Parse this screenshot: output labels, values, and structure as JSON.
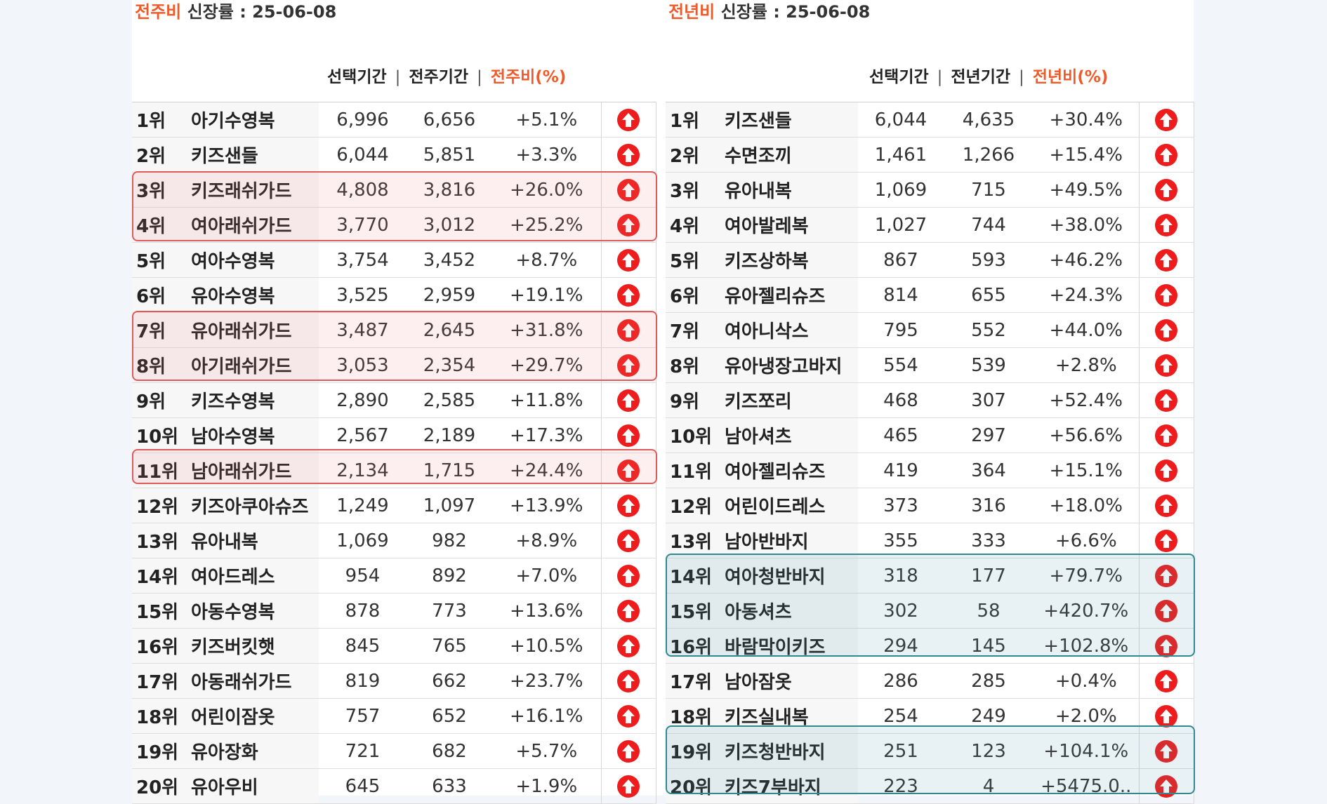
{
  "left": {
    "title_accent": "전주비",
    "title_rest": " 신장률 : 25-06-08",
    "col_selected": "선택기간",
    "col_compare": "전주기간",
    "col_ratio": "전주비(%)",
    "rows": [
      {
        "rank": "1위",
        "name": "아기수영복",
        "sel": "6,996",
        "cmp": "6,656",
        "pct": "+5.1%"
      },
      {
        "rank": "2위",
        "name": "키즈샌들",
        "sel": "6,044",
        "cmp": "5,851",
        "pct": "+3.3%"
      },
      {
        "rank": "3위",
        "name": "키즈래쉬가드",
        "sel": "4,808",
        "cmp": "3,816",
        "pct": "+26.0%"
      },
      {
        "rank": "4위",
        "name": "여아래쉬가드",
        "sel": "3,770",
        "cmp": "3,012",
        "pct": "+25.2%"
      },
      {
        "rank": "5위",
        "name": "여아수영복",
        "sel": "3,754",
        "cmp": "3,452",
        "pct": "+8.7%"
      },
      {
        "rank": "6위",
        "name": "유아수영복",
        "sel": "3,525",
        "cmp": "2,959",
        "pct": "+19.1%"
      },
      {
        "rank": "7위",
        "name": "유아래쉬가드",
        "sel": "3,487",
        "cmp": "2,645",
        "pct": "+31.8%"
      },
      {
        "rank": "8위",
        "name": "아기래쉬가드",
        "sel": "3,053",
        "cmp": "2,354",
        "pct": "+29.7%"
      },
      {
        "rank": "9위",
        "name": "키즈수영복",
        "sel": "2,890",
        "cmp": "2,585",
        "pct": "+11.8%"
      },
      {
        "rank": "10위",
        "name": "남아수영복",
        "sel": "2,567",
        "cmp": "2,189",
        "pct": "+17.3%"
      },
      {
        "rank": "11위",
        "name": "남아래쉬가드",
        "sel": "2,134",
        "cmp": "1,715",
        "pct": "+24.4%"
      },
      {
        "rank": "12위",
        "name": "키즈아쿠아슈즈",
        "sel": "1,249",
        "cmp": "1,097",
        "pct": "+13.9%"
      },
      {
        "rank": "13위",
        "name": "유아내복",
        "sel": "1,069",
        "cmp": "982",
        "pct": "+8.9%"
      },
      {
        "rank": "14위",
        "name": "여아드레스",
        "sel": "954",
        "cmp": "892",
        "pct": "+7.0%"
      },
      {
        "rank": "15위",
        "name": "아동수영복",
        "sel": "878",
        "cmp": "773",
        "pct": "+13.6%"
      },
      {
        "rank": "16위",
        "name": "키즈버킷햇",
        "sel": "845",
        "cmp": "765",
        "pct": "+10.5%"
      },
      {
        "rank": "17위",
        "name": "아동래쉬가드",
        "sel": "819",
        "cmp": "662",
        "pct": "+23.7%"
      },
      {
        "rank": "18위",
        "name": "어린이잠옷",
        "sel": "757",
        "cmp": "652",
        "pct": "+16.1%"
      },
      {
        "rank": "19위",
        "name": "유아장화",
        "sel": "721",
        "cmp": "682",
        "pct": "+5.7%"
      },
      {
        "rank": "20위",
        "name": "유아우비",
        "sel": "645",
        "cmp": "633",
        "pct": "+1.9%"
      }
    ]
  },
  "right": {
    "title_accent": "전년비",
    "title_rest": " 신장률 : 25-06-08",
    "col_selected": "선택기간",
    "col_compare": "전년기간",
    "col_ratio": "전년비(%)",
    "rows": [
      {
        "rank": "1위",
        "name": "키즈샌들",
        "sel": "6,044",
        "cmp": "4,635",
        "pct": "+30.4%"
      },
      {
        "rank": "2위",
        "name": "수면조끼",
        "sel": "1,461",
        "cmp": "1,266",
        "pct": "+15.4%"
      },
      {
        "rank": "3위",
        "name": "유아내복",
        "sel": "1,069",
        "cmp": "715",
        "pct": "+49.5%"
      },
      {
        "rank": "4위",
        "name": "여아발레복",
        "sel": "1,027",
        "cmp": "744",
        "pct": "+38.0%"
      },
      {
        "rank": "5위",
        "name": "키즈상하복",
        "sel": "867",
        "cmp": "593",
        "pct": "+46.2%"
      },
      {
        "rank": "6위",
        "name": "유아젤리슈즈",
        "sel": "814",
        "cmp": "655",
        "pct": "+24.3%"
      },
      {
        "rank": "7위",
        "name": "여아니삭스",
        "sel": "795",
        "cmp": "552",
        "pct": "+44.0%"
      },
      {
        "rank": "8위",
        "name": "유아냉장고바지",
        "sel": "554",
        "cmp": "539",
        "pct": "+2.8%"
      },
      {
        "rank": "9위",
        "name": "키즈쪼리",
        "sel": "468",
        "cmp": "307",
        "pct": "+52.4%"
      },
      {
        "rank": "10위",
        "name": "남아셔츠",
        "sel": "465",
        "cmp": "297",
        "pct": "+56.6%"
      },
      {
        "rank": "11위",
        "name": "여아젤리슈즈",
        "sel": "419",
        "cmp": "364",
        "pct": "+15.1%"
      },
      {
        "rank": "12위",
        "name": "어린이드레스",
        "sel": "373",
        "cmp": "316",
        "pct": "+18.0%"
      },
      {
        "rank": "13위",
        "name": "남아반바지",
        "sel": "355",
        "cmp": "333",
        "pct": "+6.6%"
      },
      {
        "rank": "14위",
        "name": "여아청반바지",
        "sel": "318",
        "cmp": "177",
        "pct": "+79.7%"
      },
      {
        "rank": "15위",
        "name": "아동셔츠",
        "sel": "302",
        "cmp": "58",
        "pct": "+420.7%"
      },
      {
        "rank": "16위",
        "name": "바람막이키즈",
        "sel": "294",
        "cmp": "145",
        "pct": "+102.8%"
      },
      {
        "rank": "17위",
        "name": "남아잠옷",
        "sel": "286",
        "cmp": "285",
        "pct": "+0.4%"
      },
      {
        "rank": "18위",
        "name": "키즈실내복",
        "sel": "254",
        "cmp": "249",
        "pct": "+2.0%"
      },
      {
        "rank": "19위",
        "name": "키즈청반바지",
        "sel": "251",
        "cmp": "123",
        "pct": "+104.1%"
      },
      {
        "rank": "20위",
        "name": "키즈7부바지",
        "sel": "223",
        "cmp": "4",
        "pct": "+5475.0.."
      }
    ]
  },
  "colors": {
    "accent": "#f05a28",
    "up_icon": "#ee1c1c",
    "highlight_red": "#e05a5a",
    "highlight_teal": "#2e8a8f"
  },
  "icons": {
    "trend": "arrow-up-circle-icon"
  }
}
